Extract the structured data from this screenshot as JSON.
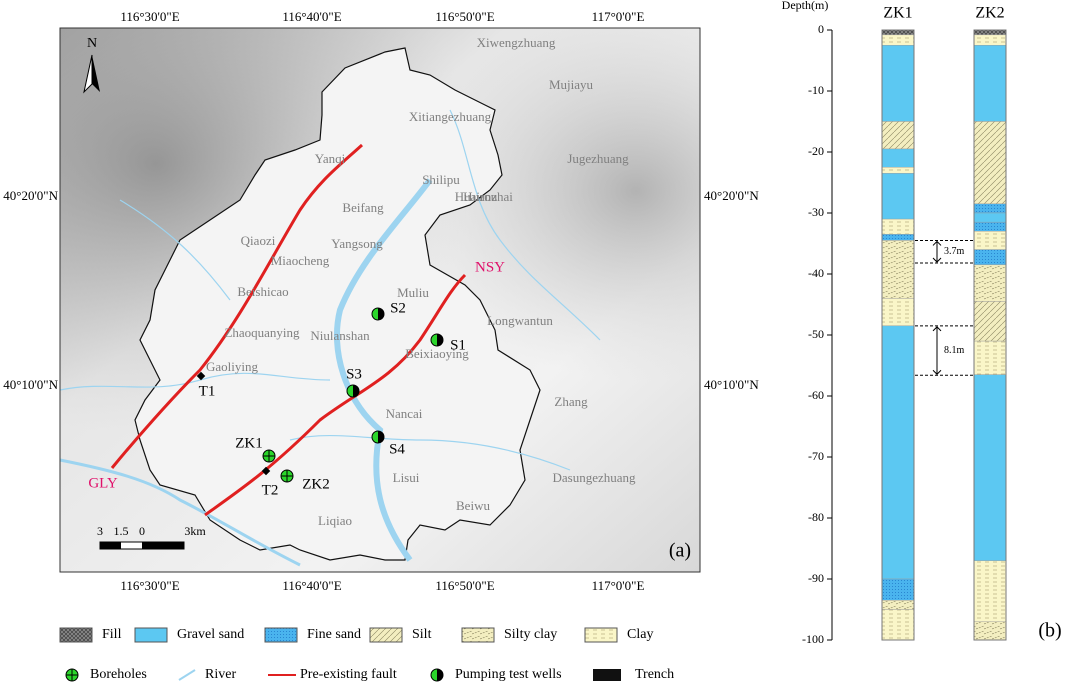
{
  "map": {
    "panel_label": "(a)",
    "lon_labels": [
      "116°30'0\"E",
      "116°40'0\"E",
      "116°50'0\"E",
      "117°0'0\"E"
    ],
    "lat_labels": [
      "40°20'0\"N",
      "40°10'0\"N"
    ],
    "north": "N",
    "places": [
      "Xiwengzhuang",
      "Xitiangezhuang",
      "Mujiayu",
      "Jugezhuang",
      "Yanqi",
      "Shilipu",
      "Huairou",
      "Huanzhai",
      "Beifang",
      "Qiaozi",
      "Yangsong",
      "Miaocheng",
      "Muliu",
      "Beishicao",
      "Longwantun",
      "Zhaoquanying",
      "Niulanshan",
      "Beixiaoying",
      "Gaoliying",
      "Nancai",
      "Zhang",
      "Lisui",
      "Dasungezhuang",
      "Beiwu",
      "Liqiao"
    ],
    "wells": [
      "S1",
      "S2",
      "S3",
      "S4"
    ],
    "boreholes": [
      "ZK1",
      "ZK2"
    ],
    "trenches": [
      "T1",
      "T2"
    ],
    "faults": [
      "GLY",
      "NSY"
    ],
    "scale": [
      "3",
      "1.5",
      "0",
      "3km"
    ]
  },
  "legend": {
    "lithology": [
      "Fill",
      "Gravel sand",
      "Fine sand",
      "Silt",
      "Silty clay",
      "Clay"
    ],
    "symbols": [
      "Boreholes",
      "River",
      "Pre-existing fault",
      "Pumping test wells",
      "Trench"
    ]
  },
  "columns": {
    "panel_label": "(b)",
    "axis_label": "Depth(m)",
    "ylim": [
      0,
      -100
    ],
    "yticks": [
      0,
      -10,
      -20,
      -30,
      -40,
      -50,
      -60,
      -70,
      -80,
      -90,
      -100
    ],
    "annotations": [
      {
        "label": "3.7m",
        "top": -34.5,
        "bottom": -38.2
      },
      {
        "label": "8.1m",
        "top": -48.5,
        "bottom": -56.6
      }
    ],
    "boreholes": [
      {
        "name": "ZK1",
        "layers": [
          {
            "lithology": "Fill",
            "top": 0,
            "bottom": -0.8
          },
          {
            "lithology": "Clay",
            "top": -0.8,
            "bottom": -2.5
          },
          {
            "lithology": "Gravel sand",
            "top": -2.5,
            "bottom": -15
          },
          {
            "lithology": "Silt",
            "top": -15,
            "bottom": -19.5
          },
          {
            "lithology": "Gravel sand",
            "top": -19.5,
            "bottom": -22.5
          },
          {
            "lithology": "Clay",
            "top": -22.5,
            "bottom": -23.5
          },
          {
            "lithology": "Gravel sand",
            "top": -23.5,
            "bottom": -31
          },
          {
            "lithology": "Clay",
            "top": -31,
            "bottom": -33.5
          },
          {
            "lithology": "Fine sand",
            "top": -33.5,
            "bottom": -34.5
          },
          {
            "lithology": "Silty clay",
            "top": -34.5,
            "bottom": -44
          },
          {
            "lithology": "Clay",
            "top": -44,
            "bottom": -48.5
          },
          {
            "lithology": "Gravel sand",
            "top": -48.5,
            "bottom": -90
          },
          {
            "lithology": "Fine sand",
            "top": -90,
            "bottom": -93.5
          },
          {
            "lithology": "Silty clay",
            "top": -93.5,
            "bottom": -95
          },
          {
            "lithology": "Clay",
            "top": -95,
            "bottom": -100
          }
        ]
      },
      {
        "name": "ZK2",
        "layers": [
          {
            "lithology": "Fill",
            "top": 0,
            "bottom": -0.8
          },
          {
            "lithology": "Clay",
            "top": -0.8,
            "bottom": -2.5
          },
          {
            "lithology": "Gravel sand",
            "top": -2.5,
            "bottom": -15
          },
          {
            "lithology": "Silt",
            "top": -15,
            "bottom": -28.5
          },
          {
            "lithology": "Fine sand",
            "top": -28.5,
            "bottom": -30
          },
          {
            "lithology": "Gravel sand",
            "top": -30,
            "bottom": -31.5
          },
          {
            "lithology": "Fine sand",
            "top": -31.5,
            "bottom": -33
          },
          {
            "lithology": "Clay",
            "top": -33,
            "bottom": -36
          },
          {
            "lithology": "Fine sand",
            "top": -36,
            "bottom": -38.5
          },
          {
            "lithology": "Silty clay",
            "top": -38.5,
            "bottom": -44.5
          },
          {
            "lithology": "Silt",
            "top": -44.5,
            "bottom": -51
          },
          {
            "lithology": "Clay",
            "top": -51,
            "bottom": -56.5
          },
          {
            "lithology": "Gravel sand",
            "top": -56.5,
            "bottom": -87
          },
          {
            "lithology": "Clay",
            "top": -87,
            "bottom": -97
          },
          {
            "lithology": "Silty clay",
            "top": -97,
            "bottom": -100
          }
        ]
      }
    ]
  }
}
